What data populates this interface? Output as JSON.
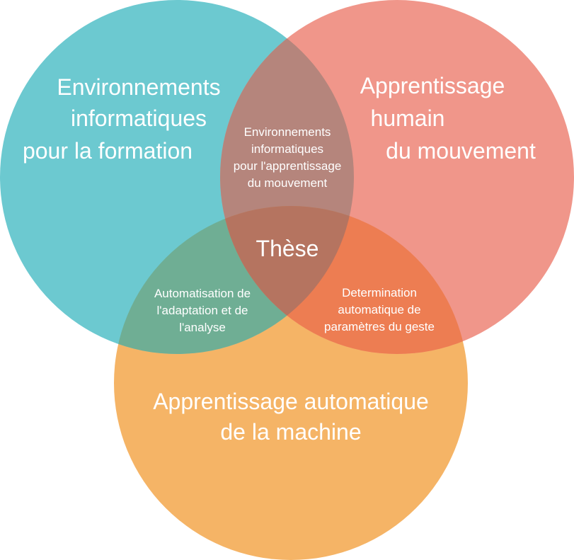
{
  "sets": {
    "top_left": {
      "lines": [
        "Environnements",
        "informatiques",
        "pour la formation"
      ],
      "color": "#6cc9d0"
    },
    "top_right": {
      "lines": [
        "Apprentissage",
        "humain",
        "du mouvement"
      ],
      "color": "#f0968a"
    },
    "bottom": {
      "lines": [
        "Apprentissage automatique",
        "de la machine"
      ],
      "color": "#f5b466"
    }
  },
  "intersections": {
    "top": {
      "lines": [
        "Environnements",
        "informatiques",
        "pour l'apprentissage",
        "du mouvement"
      ],
      "color": "#b5857c"
    },
    "left": {
      "lines": [
        "Automatisation de",
        "l'adaptation et de",
        "l'analyse"
      ],
      "color": "#6fae94"
    },
    "right": {
      "lines": [
        "Determination",
        "automatique de",
        "paramètres du geste"
      ],
      "color": "#ed7d52"
    },
    "center": {
      "lines": [
        "Thèse"
      ],
      "color": "#b57460"
    }
  }
}
